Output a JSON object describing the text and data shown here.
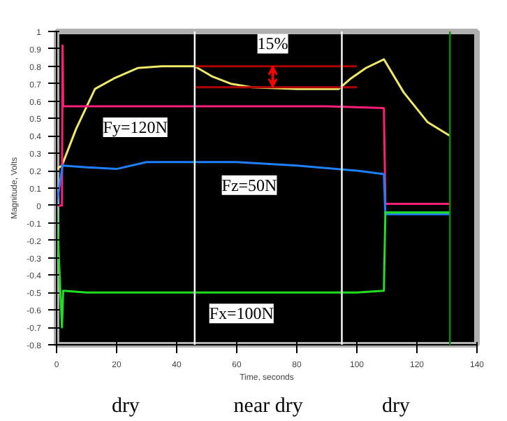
{
  "chart_data": {
    "type": "line",
    "xlabel": "Time, seconds",
    "ylabel": "Magnitude, Volts",
    "xlim": [
      0,
      140
    ],
    "ylim": [
      -0.8,
      1
    ],
    "xticks": [
      0,
      20,
      40,
      60,
      80,
      100,
      120,
      140
    ],
    "yticks": [
      -0.8,
      -0.7,
      -0.6,
      -0.5,
      -0.4,
      -0.3,
      -0.2,
      -0.1,
      0,
      0.1,
      0.2,
      0.3,
      0.4,
      0.5,
      0.6,
      0.7,
      0.8,
      0.9,
      1
    ],
    "grid": false,
    "marker": "none",
    "line_style": "solid",
    "series": [
      {
        "color": "#f0e868",
        "x": [
          0,
          1.8,
          6.5,
          12.8,
          19.1,
          27,
          35,
          46,
          52,
          58,
          65,
          80,
          94,
          98,
          103,
          109,
          115.6,
          123.5,
          131
        ],
        "values": [
          0.21,
          0.23,
          0.44,
          0.67,
          0.73,
          0.79,
          0.8,
          0.8,
          0.74,
          0.7,
          0.68,
          0.67,
          0.67,
          0.73,
          0.79,
          0.84,
          0.65,
          0.48,
          0.4
        ]
      },
      {
        "name": "Fy=120N",
        "color": "#ff1f7a",
        "x": [
          0,
          1.8,
          2,
          2.2,
          10,
          30,
          60,
          90,
          109,
          109.5,
          120,
          131
        ],
        "values": [
          0,
          0,
          0.92,
          0.57,
          0.57,
          0.57,
          0.57,
          0.57,
          0.56,
          0.01,
          0.01,
          0.01
        ]
      },
      {
        "name": "Fz=50N",
        "color": "#1e7fff",
        "x": [
          0,
          2,
          10,
          20,
          30,
          60,
          80,
          100,
          109,
          109.5,
          120,
          131
        ],
        "values": [
          0,
          0.23,
          0.22,
          0.21,
          0.25,
          0.25,
          0.23,
          0.2,
          0.18,
          -0.05,
          -0.05,
          -0.05
        ]
      },
      {
        "name": "Fx=100N",
        "color": "#22dd22",
        "x": [
          0,
          1.8,
          2.2,
          10,
          40,
          80,
          100,
          109,
          109.5,
          120,
          131
        ],
        "values": [
          0,
          -0.7,
          -0.49,
          -0.5,
          -0.5,
          -0.5,
          -0.5,
          -0.49,
          -0.04,
          -0.04,
          -0.04
        ]
      },
      {
        "color": "#b00000",
        "x": [
          46,
          100
        ],
        "values": [
          0.8,
          0.8
        ]
      },
      {
        "color": "#b00000",
        "x": [
          46,
          100
        ],
        "values": [
          0.68,
          0.68
        ]
      }
    ],
    "ref_lines": [
      {
        "axis": "x",
        "value": 46,
        "color": "#ffffff"
      },
      {
        "axis": "x",
        "value": 95,
        "color": "#ffffff"
      },
      {
        "axis": "x",
        "value": 131,
        "color": "#0a8a0a"
      }
    ],
    "annotations": [
      {
        "text": "15%",
        "x": 72,
        "y": 0.93
      },
      "dry",
      "near dry",
      "dry"
    ]
  }
}
